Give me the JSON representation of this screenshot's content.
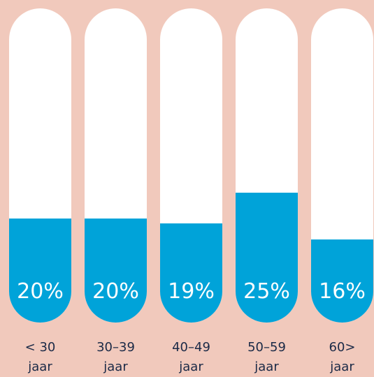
{
  "chart_data": {
    "type": "bar",
    "categories": [
      "< 30 jaar",
      "30–39 jaar",
      "40–49 jaar",
      "50–59 jaar",
      "60> jaar"
    ],
    "values": [
      20,
      20,
      19,
      25,
      16
    ],
    "value_labels": [
      "20%",
      "20%",
      "19%",
      "25%",
      "16%"
    ],
    "color": "#00a3d9"
  }
}
